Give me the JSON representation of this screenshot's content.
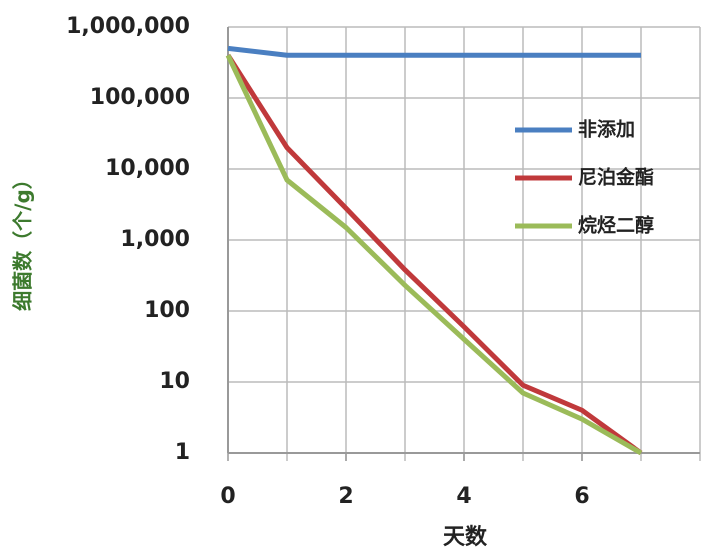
{
  "chart_data": {
    "type": "line",
    "x_label": "天数",
    "y_label": "细菌数（个/g）",
    "x": [
      0,
      1,
      2,
      3,
      4,
      5,
      6,
      7
    ],
    "series": [
      {
        "name": "非添加",
        "color": "#4a7fc1",
        "values": [
          500000,
          400000,
          400000,
          400000,
          400000,
          400000,
          400000,
          400000
        ]
      },
      {
        "name": "尼泊金酯",
        "color": "#c0393b",
        "values": [
          400000,
          20000,
          2800,
          380,
          60,
          9,
          4,
          1
        ]
      },
      {
        "name": "烷烃二醇",
        "color": "#9bbb59",
        "values": [
          400000,
          7000,
          1500,
          230,
          40,
          7,
          3,
          1
        ]
      }
    ],
    "xlim": [
      0,
      8
    ],
    "xticks": [
      0,
      2,
      4,
      6
    ],
    "x_gridlines": [
      1,
      2,
      3,
      4,
      5,
      6,
      7,
      8
    ],
    "ylim": [
      1,
      1000000
    ],
    "yticks": [
      1,
      10,
      100,
      {
        "value": 1000,
        "label": "1,000"
      },
      {
        "value": 10000,
        "label": "10,000"
      },
      {
        "value": 100000,
        "label": "100,000"
      },
      {
        "value": 1000000,
        "label": "1,000,000"
      }
    ],
    "y_scale": "log",
    "grid": true,
    "legend": "right"
  }
}
